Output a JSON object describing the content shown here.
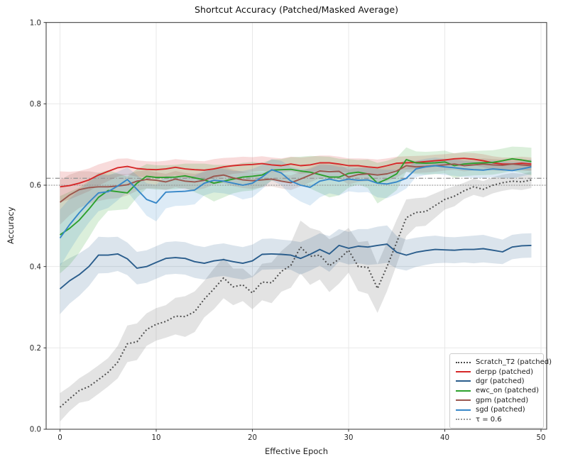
{
  "chart_data": {
    "type": "line",
    "title": "Shortcut Accuracy (Patched/Masked Average)",
    "xlabel": "Effective Epoch",
    "ylabel": "Accuracy",
    "xlim": [
      -1.44,
      50.59
    ],
    "ylim": [
      0,
      1
    ],
    "x_ticks": [
      0,
      10,
      20,
      30,
      40,
      50
    ],
    "y_ticks": [
      "0.0",
      "0.2",
      "0.4",
      "0.6",
      "0.8",
      "1.0"
    ],
    "grid": true,
    "grid_color": "#e5e5e5",
    "spine_color": "#333333",
    "legend_position": "lower right",
    "x": [
      0,
      1,
      2,
      3,
      4,
      5,
      6,
      7,
      8,
      9,
      10,
      11,
      12,
      13,
      14,
      15,
      16,
      17,
      18,
      19,
      20,
      21,
      22,
      23,
      24,
      25,
      26,
      27,
      28,
      29,
      30,
      31,
      32,
      33,
      34,
      35,
      36,
      37,
      38,
      39,
      40,
      41,
      42,
      43,
      44,
      45,
      46,
      47,
      48,
      49
    ],
    "series": [
      {
        "name": "Scratch_T2 (patched)",
        "style": "dotted",
        "color": "#4a4a4a",
        "band_color": "#999999",
        "band_opacity": 0.28,
        "values": [
          0.054,
          0.075,
          0.095,
          0.105,
          0.122,
          0.14,
          0.165,
          0.21,
          0.215,
          0.245,
          0.258,
          0.265,
          0.278,
          0.277,
          0.289,
          0.32,
          0.345,
          0.372,
          0.35,
          0.355,
          0.335,
          0.362,
          0.36,
          0.388,
          0.403,
          0.448,
          0.425,
          0.428,
          0.402,
          0.418,
          0.44,
          0.4,
          0.398,
          0.346,
          0.4,
          0.46,
          0.52,
          0.533,
          0.535,
          0.55,
          0.565,
          0.573,
          0.586,
          0.596,
          0.59,
          0.6,
          0.606,
          0.61,
          0.608,
          0.613
        ],
        "band": [
          0.035,
          0.03,
          0.03,
          0.035,
          0.035,
          0.035,
          0.04,
          0.045,
          0.045,
          0.04,
          0.04,
          0.04,
          0.045,
          0.05,
          0.05,
          0.045,
          0.05,
          0.05,
          0.045,
          0.04,
          0.04,
          0.045,
          0.05,
          0.05,
          0.055,
          0.065,
          0.07,
          0.06,
          0.065,
          0.06,
          0.055,
          0.06,
          0.065,
          0.06,
          0.06,
          0.055,
          0.045,
          0.035,
          0.035,
          0.03,
          0.025,
          0.025,
          0.02,
          0.02,
          0.02,
          0.02,
          0.02,
          0.02,
          0.02,
          0.02
        ]
      },
      {
        "name": "derpp (patched)",
        "style": "solid",
        "color": "#d62728",
        "band_color": "#d62728",
        "band_opacity": 0.17,
        "values": [
          0.596,
          0.599,
          0.605,
          0.613,
          0.625,
          0.634,
          0.643,
          0.646,
          0.641,
          0.639,
          0.638,
          0.64,
          0.644,
          0.64,
          0.638,
          0.637,
          0.64,
          0.645,
          0.648,
          0.65,
          0.651,
          0.653,
          0.65,
          0.648,
          0.652,
          0.648,
          0.65,
          0.655,
          0.655,
          0.652,
          0.648,
          0.648,
          0.645,
          0.643,
          0.648,
          0.654,
          0.655,
          0.656,
          0.658,
          0.66,
          0.662,
          0.665,
          0.666,
          0.664,
          0.66,
          0.655,
          0.652,
          0.652,
          0.654,
          0.652
        ],
        "band": [
          0.038,
          0.034,
          0.03,
          0.028,
          0.026,
          0.024,
          0.022,
          0.02,
          0.02,
          0.02,
          0.02,
          0.02,
          0.02,
          0.022,
          0.022,
          0.022,
          0.024,
          0.022,
          0.02,
          0.02,
          0.018,
          0.018,
          0.018,
          0.018,
          0.018,
          0.02,
          0.02,
          0.018,
          0.018,
          0.018,
          0.018,
          0.018,
          0.02,
          0.02,
          0.018,
          0.016,
          0.016,
          0.016,
          0.015,
          0.015,
          0.014,
          0.014,
          0.014,
          0.015,
          0.016,
          0.016,
          0.016,
          0.016,
          0.016,
          0.016
        ]
      },
      {
        "name": "dgr (patched)",
        "style": "solid",
        "color": "#2a5d8c",
        "band_color": "#2a5d8c",
        "band_opacity": 0.17,
        "values": [
          0.345,
          0.365,
          0.38,
          0.4,
          0.428,
          0.428,
          0.431,
          0.419,
          0.396,
          0.4,
          0.41,
          0.42,
          0.422,
          0.42,
          0.412,
          0.408,
          0.414,
          0.417,
          0.412,
          0.408,
          0.414,
          0.43,
          0.431,
          0.43,
          0.428,
          0.42,
          0.43,
          0.442,
          0.431,
          0.452,
          0.445,
          0.45,
          0.448,
          0.452,
          0.455,
          0.435,
          0.428,
          0.435,
          0.439,
          0.442,
          0.441,
          0.44,
          0.442,
          0.442,
          0.444,
          0.44,
          0.436,
          0.448,
          0.451,
          0.452
        ],
        "band": [
          0.062,
          0.056,
          0.052,
          0.048,
          0.045,
          0.044,
          0.042,
          0.04,
          0.04,
          0.04,
          0.04,
          0.04,
          0.04,
          0.04,
          0.04,
          0.04,
          0.04,
          0.04,
          0.04,
          0.04,
          0.04,
          0.038,
          0.038,
          0.036,
          0.036,
          0.04,
          0.04,
          0.04,
          0.044,
          0.04,
          0.04,
          0.042,
          0.044,
          0.046,
          0.046,
          0.04,
          0.038,
          0.036,
          0.035,
          0.034,
          0.032,
          0.032,
          0.032,
          0.034,
          0.034,
          0.032,
          0.03,
          0.03,
          0.03,
          0.03
        ]
      },
      {
        "name": "ewc_on (patched)",
        "style": "solid",
        "color": "#2ca02c",
        "band_color": "#2ca02c",
        "band_opacity": 0.17,
        "values": [
          0.478,
          0.494,
          0.514,
          0.541,
          0.57,
          0.587,
          0.584,
          0.581,
          0.605,
          0.622,
          0.619,
          0.619,
          0.62,
          0.623,
          0.618,
          0.613,
          0.605,
          0.61,
          0.615,
          0.62,
          0.622,
          0.625,
          0.637,
          0.638,
          0.639,
          0.635,
          0.632,
          0.626,
          0.62,
          0.62,
          0.629,
          0.632,
          0.628,
          0.605,
          0.615,
          0.628,
          0.663,
          0.655,
          0.654,
          0.655,
          0.657,
          0.648,
          0.652,
          0.654,
          0.655,
          0.656,
          0.66,
          0.665,
          0.662,
          0.658
        ],
        "band": [
          0.095,
          0.09,
          0.08,
          0.07,
          0.06,
          0.05,
          0.045,
          0.04,
          0.035,
          0.03,
          0.03,
          0.03,
          0.03,
          0.03,
          0.035,
          0.04,
          0.045,
          0.04,
          0.035,
          0.035,
          0.035,
          0.03,
          0.026,
          0.026,
          0.03,
          0.035,
          0.04,
          0.045,
          0.05,
          0.045,
          0.035,
          0.03,
          0.035,
          0.05,
          0.045,
          0.04,
          0.03,
          0.028,
          0.028,
          0.028,
          0.028,
          0.03,
          0.03,
          0.03,
          0.03,
          0.03,
          0.03,
          0.03,
          0.032,
          0.034
        ]
      },
      {
        "name": "gpm (patched)",
        "style": "solid",
        "color": "#9a564e",
        "band_color": "#9a564e",
        "band_opacity": 0.17,
        "values": [
          0.558,
          0.576,
          0.589,
          0.594,
          0.596,
          0.596,
          0.598,
          0.601,
          0.61,
          0.614,
          0.612,
          0.608,
          0.615,
          0.61,
          0.608,
          0.612,
          0.622,
          0.625,
          0.618,
          0.613,
          0.611,
          0.613,
          0.615,
          0.61,
          0.606,
          0.615,
          0.625,
          0.635,
          0.633,
          0.634,
          0.62,
          0.626,
          0.628,
          0.625,
          0.628,
          0.635,
          0.648,
          0.645,
          0.646,
          0.648,
          0.65,
          0.652,
          0.648,
          0.65,
          0.652,
          0.65,
          0.649,
          0.652,
          0.65,
          0.648
        ],
        "band": [
          0.055,
          0.05,
          0.045,
          0.04,
          0.035,
          0.03,
          0.03,
          0.026,
          0.024,
          0.022,
          0.02,
          0.02,
          0.02,
          0.02,
          0.02,
          0.02,
          0.02,
          0.02,
          0.02,
          0.02,
          0.02,
          0.018,
          0.018,
          0.018,
          0.018,
          0.018,
          0.018,
          0.018,
          0.018,
          0.018,
          0.018,
          0.018,
          0.018,
          0.018,
          0.018,
          0.016,
          0.015,
          0.015,
          0.015,
          0.015,
          0.014,
          0.014,
          0.014,
          0.014,
          0.014,
          0.014,
          0.014,
          0.014,
          0.014,
          0.014
        ]
      },
      {
        "name": "sgd (patched)",
        "style": "solid",
        "color": "#3787c8",
        "band_color": "#3787c8",
        "band_opacity": 0.17,
        "values": [
          0.47,
          0.503,
          0.532,
          0.558,
          0.581,
          0.584,
          0.598,
          0.614,
          0.59,
          0.565,
          0.556,
          0.583,
          0.584,
          0.585,
          0.588,
          0.605,
          0.612,
          0.61,
          0.605,
          0.6,
          0.605,
          0.62,
          0.638,
          0.63,
          0.61,
          0.6,
          0.595,
          0.61,
          0.615,
          0.61,
          0.615,
          0.612,
          0.613,
          0.605,
          0.603,
          0.608,
          0.617,
          0.64,
          0.645,
          0.648,
          0.645,
          0.643,
          0.64,
          0.638,
          0.637,
          0.64,
          0.638,
          0.636,
          0.64,
          0.645
        ],
        "band": [
          0.07,
          0.064,
          0.056,
          0.05,
          0.045,
          0.04,
          0.035,
          0.03,
          0.035,
          0.04,
          0.045,
          0.04,
          0.035,
          0.035,
          0.035,
          0.03,
          0.03,
          0.03,
          0.03,
          0.035,
          0.035,
          0.03,
          0.026,
          0.03,
          0.035,
          0.04,
          0.045,
          0.04,
          0.035,
          0.035,
          0.03,
          0.03,
          0.03,
          0.035,
          0.035,
          0.03,
          0.025,
          0.02,
          0.02,
          0.02,
          0.02,
          0.02,
          0.02,
          0.02,
          0.02,
          0.02,
          0.02,
          0.02,
          0.018,
          0.018
        ]
      }
    ],
    "reference_lines": [
      {
        "label": "",
        "value": 0.617,
        "style": "dashdot",
        "color": "#999999"
      },
      {
        "label": "τ = 0.6",
        "value": 0.6,
        "style": "dotted",
        "color": "#999999"
      }
    ]
  }
}
